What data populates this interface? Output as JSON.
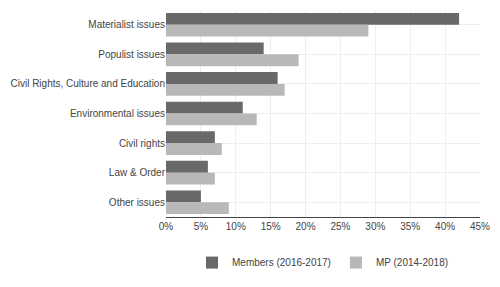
{
  "chart_data": {
    "type": "bar",
    "orientation": "horizontal",
    "categories": [
      "Materialist issues",
      "Populist issues",
      "Civil Rights, Culture and Education",
      "Environmental issues",
      "Civil rights",
      "Law & Order",
      "Other issues"
    ],
    "series": [
      {
        "name": "Members (2016-2017)",
        "color": "#696969",
        "values": [
          0.42,
          0.14,
          0.16,
          0.11,
          0.07,
          0.06,
          0.05
        ]
      },
      {
        "name": "MP (2014-2018)",
        "color": "#b8b8b8",
        "values": [
          0.29,
          0.19,
          0.17,
          0.13,
          0.08,
          0.07,
          0.09
        ]
      }
    ],
    "xlim": [
      0,
      0.45
    ],
    "xticks": [
      {
        "value": 0.0,
        "label": "0%"
      },
      {
        "value": 0.05,
        "label": "5%"
      },
      {
        "value": 0.1,
        "label": "10%"
      },
      {
        "value": 0.15,
        "label": "15%"
      },
      {
        "value": 0.2,
        "label": "20%"
      },
      {
        "value": 0.25,
        "label": "25%"
      },
      {
        "value": 0.3,
        "label": "30%"
      },
      {
        "value": 0.35,
        "label": "35%"
      },
      {
        "value": 0.4,
        "label": "40%"
      },
      {
        "value": 0.45,
        "label": "45%"
      }
    ],
    "grid": true,
    "legend": "bottom"
  }
}
